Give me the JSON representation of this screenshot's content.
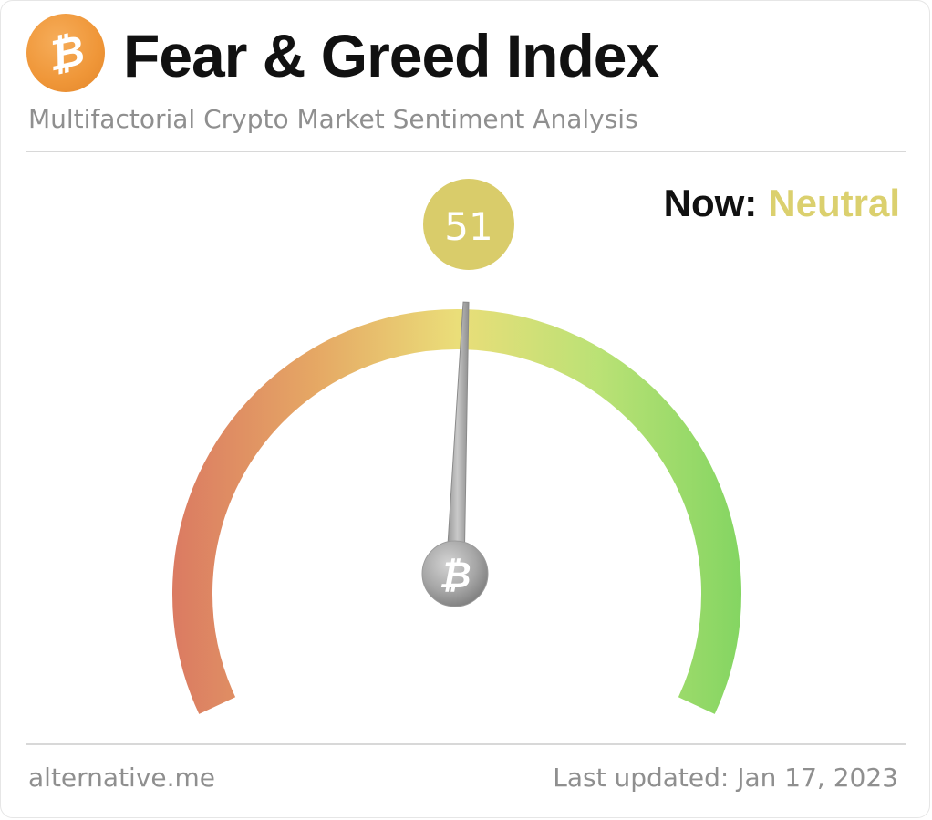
{
  "header": {
    "logo_glyph": "₿",
    "logo_icon": "bitcoin-icon",
    "title": "Fear & Greed Index",
    "subtitle": "Multifactorial Crypto Market Sentiment Analysis"
  },
  "status": {
    "now_label": "Now:",
    "classification": "Neutral",
    "classification_color": "#dbd06e"
  },
  "gauge": {
    "value": 51,
    "value_text": "51",
    "min": 0,
    "max": 100,
    "badge_color": "#d9cc6a",
    "hub_glyph": "₿",
    "hub_icon": "bitcoin-icon",
    "gradient_colors": [
      "#d9745a",
      "#e4a35c",
      "#e9dc72",
      "#b7e06e",
      "#7ed35a"
    ]
  },
  "footer": {
    "source": "alternative.me",
    "last_updated": "Last updated: Jan 17, 2023"
  }
}
